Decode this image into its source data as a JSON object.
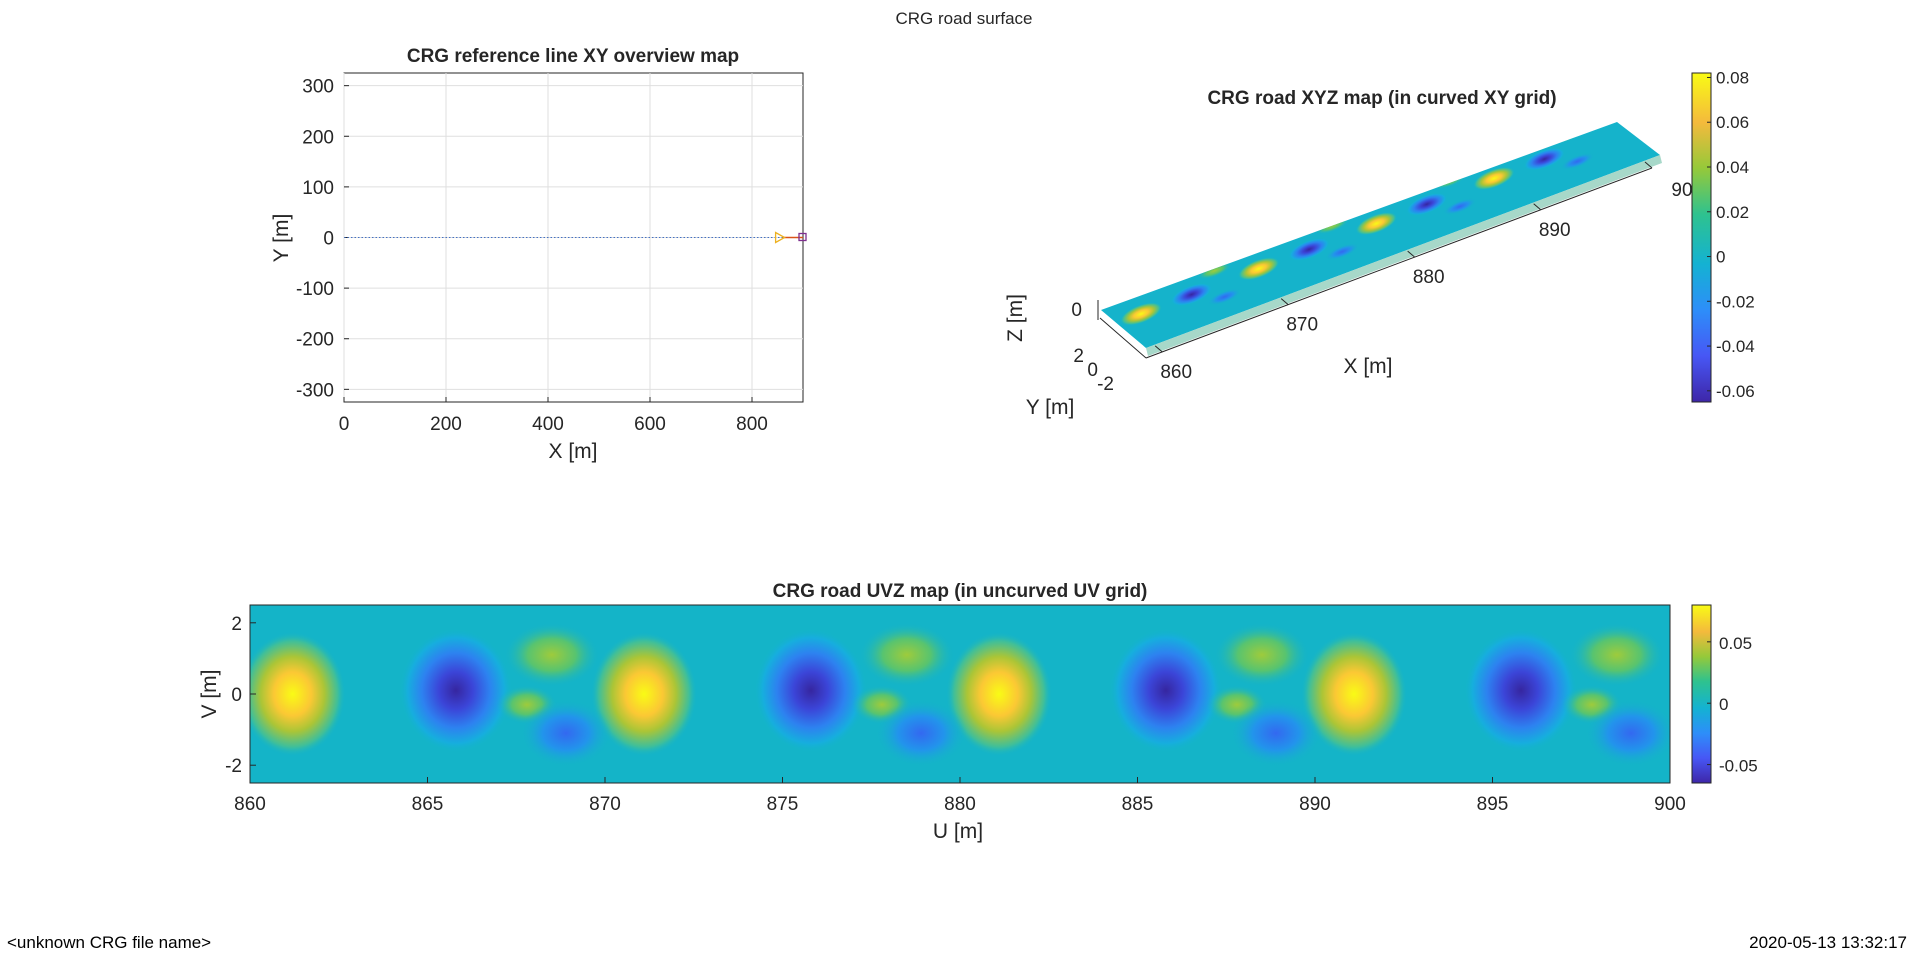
{
  "figure": {
    "suptitle": "CRG road surface",
    "footer_left": "<unknown CRG file name>",
    "footer_right": "2020-05-13 13:32:17"
  },
  "chart_data": [
    {
      "type": "line",
      "title": "CRG reference line XY overview map",
      "xlabel": "X [m]",
      "ylabel": "Y [m]",
      "xlim": [
        0,
        900
      ],
      "ylim": [
        -325,
        325
      ],
      "xticks": [
        "0",
        "200",
        "400",
        "600",
        "800"
      ],
      "yticks": [
        "300",
        "200",
        "100",
        "0",
        "-100",
        "-200",
        "-300"
      ],
      "grid": true,
      "series": [
        {
          "x": [
            0,
            900
          ],
          "y": [
            0,
            0
          ],
          "style": "dotted",
          "color": "#4472c4"
        },
        {
          "x": [
            860,
            900
          ],
          "y": [
            0,
            0
          ],
          "style": "solid",
          "color": "#d95319"
        }
      ],
      "markers": [
        {
          "x": 860,
          "y": 0,
          "shape": "triangle-right",
          "color": "#edb120"
        },
        {
          "x": 900,
          "y": 0,
          "shape": "square",
          "color": "#7e2f8e"
        }
      ]
    },
    {
      "type": "heatmap",
      "title": "CRG road XYZ map (in curved XY grid)",
      "xlabel": "X [m]",
      "ylabel": "Y [m]",
      "zlabel": "Z [m]",
      "xticks": [
        "860",
        "870",
        "880",
        "890",
        "90"
      ],
      "yticks": [
        "2",
        "0",
        "-2"
      ],
      "zticks": [
        "0"
      ],
      "colorbar_ticks": [
        "0.08",
        "0.06",
        "0.04",
        "0.02",
        "0",
        "-0.02",
        "-0.04",
        "-0.06"
      ],
      "zlim": [
        -0.065,
        0.082
      ],
      "colormap": "parula"
    },
    {
      "type": "heatmap",
      "title": "CRG road UVZ map (in uncurved UV grid)",
      "xlabel": "U [m]",
      "ylabel": "V [m]",
      "xlim": [
        860,
        900
      ],
      "ylim": [
        -2.5,
        2.5
      ],
      "xticks": [
        "860",
        "865",
        "870",
        "875",
        "880",
        "885",
        "890",
        "895",
        "900"
      ],
      "yticks": [
        "2",
        "0",
        "-2"
      ],
      "colorbar_ticks": [
        "0.05",
        "0",
        "-0.05"
      ],
      "zlim": [
        -0.065,
        0.08
      ],
      "colormap": "parula",
      "peaks_u": [
        861.2,
        871.1,
        881.1,
        891.1
      ],
      "troughs_u": [
        865.8,
        875.8,
        885.8,
        895.8
      ]
    }
  ]
}
